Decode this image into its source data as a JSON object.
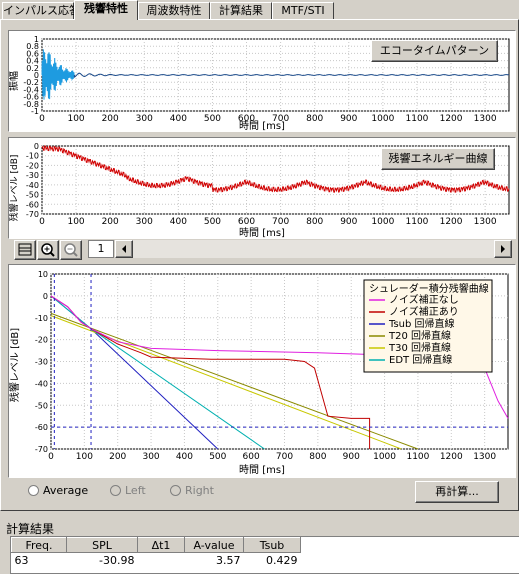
{
  "tabs": [
    "インパルス応答",
    "残響特性",
    "周波数特性",
    "計算結果",
    "MTF/STI"
  ],
  "active_tab": 1,
  "echo_panel": {
    "title_button": "エコータイムパターン",
    "ylabel": "振幅",
    "xlabel": "時間 [ms]",
    "yticks": [
      "1",
      "0.8",
      "0.6",
      "0.4",
      "0.2",
      "0",
      "-0.2",
      "-0.4",
      "-0.6",
      "-0.8",
      "-1"
    ]
  },
  "energy_panel": {
    "title_button": "残響エネルギー曲線",
    "ylabel": "残響レベル [dB]",
    "xlabel": "時間 [ms]",
    "yticks": [
      "0",
      "-10",
      "-20",
      "-30",
      "-40",
      "-50",
      "-60",
      "-70"
    ]
  },
  "toolbar": {
    "page_value": "1"
  },
  "decay_panel": {
    "ylabel": "残響レベル [dB]",
    "xlabel": "時間 [ms]",
    "legend_title": "シュレーダー積分残響曲線",
    "legend": [
      {
        "label": "ノイズ補正なし",
        "color": "#e020e0"
      },
      {
        "label": "ノイズ補正あり",
        "color": "#c00000"
      },
      {
        "label": "Tsub 回帰直線",
        "color": "#2020c0"
      },
      {
        "label": "T20 回帰直線",
        "color": "#8a8a00"
      },
      {
        "label": "T30 回帰直線",
        "color": "#c8c800"
      },
      {
        "label": "EDT 回帰直線",
        "color": "#00b0b0"
      }
    ]
  },
  "x_axis_ticks": [
    "0",
    "100",
    "200",
    "300",
    "400",
    "500",
    "600",
    "700",
    "800",
    "900",
    "1000",
    "1100",
    "1200",
    "1300"
  ],
  "decay_x_axis_ticks": [
    "0",
    "100",
    "200",
    "300",
    "400",
    "500",
    "600",
    "700",
    "800",
    "900",
    "1000",
    "1100",
    "1200",
    "1300"
  ],
  "decay_y_ticks": [
    "10",
    "0",
    "-10",
    "-20",
    "-30",
    "-40",
    "-50",
    "-60",
    "-70"
  ],
  "options": {
    "radio_average": "Average",
    "radio_left": "Left",
    "radio_right": "Right",
    "recalc_button": "再計算..."
  },
  "results": {
    "section_title": "計算結果",
    "columns": [
      "Freq.",
      "SPL",
      "Δt1",
      "A-value",
      "Tsub"
    ],
    "rows": [
      [
        "63",
        "-30.98",
        "",
        "3.57",
        "0.429"
      ]
    ]
  }
}
